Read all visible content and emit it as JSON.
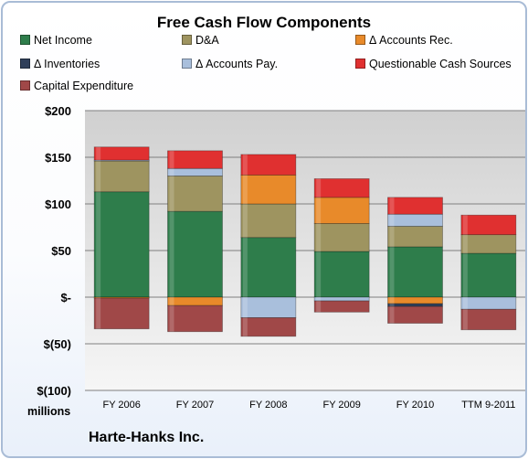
{
  "chart_data": {
    "type": "bar",
    "title": "Free Cash Flow Components",
    "units_label": "millions",
    "footer": "Harte-Hanks Inc.",
    "categories": [
      "FY 2006",
      "FY 2007",
      "FY 2008",
      "FY 2009",
      "FY 2010",
      "TTM 9-2011"
    ],
    "yticks": [
      "$200",
      "$150",
      "$100",
      "$50",
      "$-",
      "$(50)",
      "$(100)"
    ],
    "ylim": [
      -100,
      200
    ],
    "grid": true,
    "legend_position": "top",
    "stacked": true,
    "series": [
      {
        "name": "Net Income",
        "color": "#2e7d4b",
        "values": [
          113,
          92,
          64,
          49,
          54,
          47
        ]
      },
      {
        "name": "D&A",
        "color": "#9e9460",
        "values": [
          33,
          38,
          36,
          30,
          22,
          20
        ]
      },
      {
        "name": "Δ Accounts Rec.",
        "color": "#e88a2a",
        "values": [
          -1,
          -9,
          31,
          28,
          -7,
          0
        ]
      },
      {
        "name": "Δ Inventories",
        "color": "#2f3f5a",
        "values": [
          0,
          0,
          0,
          0,
          -3,
          0
        ]
      },
      {
        "name": "Δ Accounts Pay.",
        "color": "#a9bfdc",
        "values": [
          1,
          8,
          -22,
          -4,
          13,
          -13
        ]
      },
      {
        "name": "Questionable Cash Sources",
        "color": "#e03030",
        "values": [
          14,
          19,
          22,
          20,
          18,
          21
        ]
      },
      {
        "name": "Capital Expenditure",
        "color": "#a04848",
        "values": [
          -33,
          -28,
          -20,
          -12,
          -18,
          -22
        ]
      }
    ]
  }
}
